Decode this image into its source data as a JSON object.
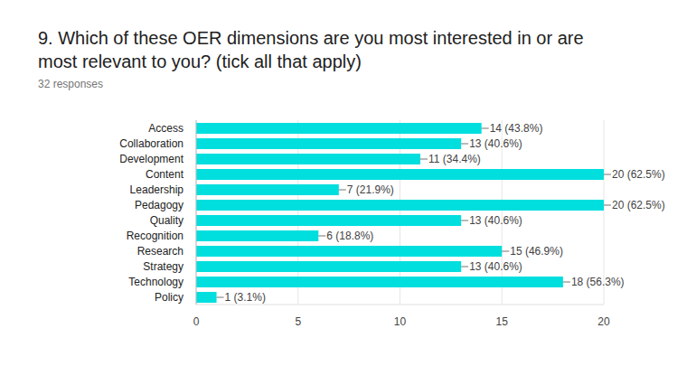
{
  "chart_data": {
    "type": "bar",
    "title": "9. Which of these OER dimensions are you most interested in or are most relevant to you? (tick all that apply)",
    "subtitle": "32 responses",
    "orientation": "horizontal",
    "categories": [
      "Access",
      "Collaboration",
      "Development",
      "Content",
      "Leadership",
      "Pedagogy",
      "Quality",
      "Recognition",
      "Research",
      "Strategy",
      "Technology",
      "Policy"
    ],
    "values": [
      14,
      13,
      11,
      20,
      7,
      20,
      13,
      6,
      15,
      13,
      18,
      1
    ],
    "value_labels": [
      "14 (43.8%)",
      "13 (40.6%)",
      "11 (34.4%)",
      "20 (62.5%)",
      "7 (21.9%)",
      "20 (62.5%)",
      "13 (40.6%)",
      "6 (18.8%)",
      "15 (46.9%)",
      "13 (40.6%)",
      "18 (56.3%)",
      "1 (3.1%)"
    ],
    "color": "#00dede",
    "xlim": [
      0,
      20
    ],
    "xticks": [
      0,
      5,
      10,
      15,
      20
    ],
    "grid": true,
    "data_labels": true
  }
}
